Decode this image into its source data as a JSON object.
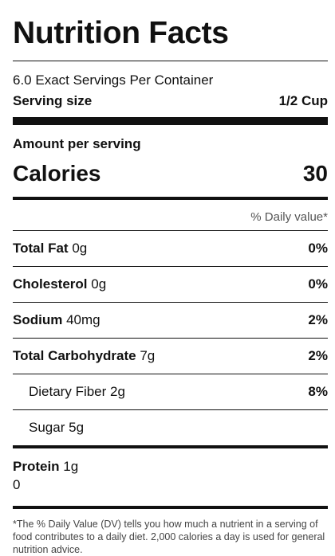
{
  "label": {
    "title": "Nutrition Facts",
    "servings_per_container": "6.0 Exact Servings Per Container",
    "serving_size_label": "Serving size",
    "serving_size_value": "1/2 Cup",
    "amount_per_serving": "Amount per serving",
    "calories_label": "Calories",
    "calories_value": "30",
    "daily_value_header": "% Daily value*",
    "nutrients": [
      {
        "name": "Total Fat",
        "amount": "0g",
        "dv": "0%"
      },
      {
        "name": "Cholesterol",
        "amount": "0g",
        "dv": "0%"
      },
      {
        "name": "Sodium",
        "amount": "40mg",
        "dv": "2%"
      },
      {
        "name": "Total Carbohydrate",
        "amount": "7g",
        "dv": "2%"
      },
      {
        "name": "Dietary Fiber",
        "amount": "2g",
        "dv": "8%"
      },
      {
        "name": "Sugar",
        "amount": "5g",
        "dv": ""
      }
    ],
    "protein_label": "Protein",
    "protein_amount": "1g",
    "protein_dv": "0",
    "footnote": "*The % Daily Value (DV) tells you how much a nutrient in a serving of food contributes to a daily diet. 2,000 calories a day is used for general nutrition advice."
  }
}
